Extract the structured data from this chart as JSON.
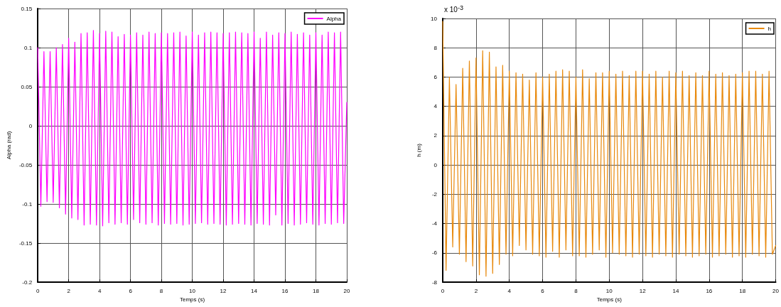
{
  "chart_data": [
    {
      "type": "line",
      "xlabel": "Temps (s)",
      "ylabel": "Alpha (rad)",
      "grid": true,
      "legend": "top right",
      "marker": "none",
      "line_style": "solid",
      "xlim": [
        0,
        20
      ],
      "xticks": [
        0,
        2,
        4,
        6,
        8,
        10,
        12,
        14,
        16,
        18,
        20
      ],
      "ylim": [
        -0.2,
        0.15
      ],
      "yticks": [
        -0.2,
        -0.15,
        -0.1,
        -0.05,
        0,
        0.05,
        0.1,
        0.15
      ],
      "x": [
        0,
        0.2,
        0.4,
        0.6,
        0.8,
        1,
        1.2,
        1.4,
        1.6,
        1.8,
        2,
        2.2,
        2.4,
        2.6,
        2.8,
        3,
        3.2,
        3.4,
        3.6,
        3.8,
        4,
        4.2,
        4.4,
        4.6,
        4.8,
        5,
        5.2,
        5.4,
        5.6,
        5.8,
        6,
        6.2,
        6.4,
        6.6,
        6.8,
        7,
        7.2,
        7.4,
        7.6,
        7.8,
        8,
        8.2,
        8.4,
        8.6,
        8.8,
        9,
        9.2,
        9.4,
        9.6,
        9.8,
        10,
        10.2,
        10.4,
        10.6,
        10.8,
        11,
        11.2,
        11.4,
        11.6,
        11.8,
        12,
        12.2,
        12.4,
        12.6,
        12.8,
        13,
        13.2,
        13.4,
        13.6,
        13.8,
        14,
        14.2,
        14.4,
        14.6,
        14.8,
        15,
        15.2,
        15.4,
        15.6,
        15.8,
        16,
        16.2,
        16.4,
        16.6,
        16.8,
        17,
        17.2,
        17.4,
        17.6,
        17.8,
        18,
        18.2,
        18.4,
        18.6,
        18.8,
        19,
        19.2,
        19.4,
        19.6,
        19.8,
        20
      ],
      "series": [
        {
          "name": "Alpha",
          "color": "#ff00ff",
          "values": [
            0.1,
            -0.103,
            0.095,
            -0.097,
            0.095,
            -0.098,
            0.1,
            -0.105,
            0.104,
            -0.113,
            0.112,
            -0.118,
            0.107,
            -0.12,
            0.118,
            -0.127,
            0.119,
            -0.126,
            0.122,
            -0.127,
            0.118,
            -0.128,
            0.121,
            -0.124,
            0.12,
            -0.126,
            0.114,
            -0.124,
            0.117,
            -0.126,
            0.116,
            -0.12,
            0.119,
            -0.124,
            0.116,
            -0.126,
            0.12,
            -0.124,
            0.118,
            -0.127,
            0.119,
            -0.125,
            0.118,
            -0.126,
            0.119,
            -0.125,
            0.12,
            -0.127,
            0.115,
            -0.126,
            0.12,
            -0.125,
            0.116,
            -0.124,
            0.119,
            -0.126,
            0.12,
            -0.125,
            0.119,
            -0.126,
            0.118,
            -0.127,
            0.119,
            -0.126,
            0.12,
            -0.125,
            0.119,
            -0.126,
            0.118,
            -0.127,
            0.12,
            -0.125,
            0.112,
            -0.126,
            0.12,
            -0.127,
            0.116,
            -0.114,
            0.119,
            -0.127,
            0.118,
            -0.125,
            0.12,
            -0.127,
            0.117,
            -0.126,
            0.119,
            -0.124,
            0.116,
            -0.126,
            0.119,
            -0.127,
            0.116,
            -0.125,
            0.12,
            -0.126,
            0.119,
            -0.124,
            0.12,
            -0.125,
            0.03
          ]
        }
      ]
    },
    {
      "type": "line",
      "xlabel": "Temps (s)",
      "ylabel": "h (m)",
      "annotations": [
        "x 10$^{-3}$"
      ],
      "grid": true,
      "legend": "top right",
      "marker": "none",
      "line_style": "solid",
      "xlim": [
        0,
        20
      ],
      "xticks": [
        0,
        2,
        4,
        6,
        8,
        10,
        12,
        14,
        16,
        18,
        20
      ],
      "ylim": [
        -8,
        10
      ],
      "yticks": [
        -8,
        -6,
        -4,
        -2,
        0,
        2,
        4,
        6,
        8,
        10
      ],
      "x": [
        0,
        0.2,
        0.4,
        0.6,
        0.8,
        1,
        1.2,
        1.4,
        1.6,
        1.8,
        2,
        2.2,
        2.4,
        2.6,
        2.8,
        3,
        3.2,
        3.4,
        3.6,
        3.8,
        4,
        4.2,
        4.4,
        4.6,
        4.8,
        5,
        5.2,
        5.4,
        5.6,
        5.8,
        6,
        6.2,
        6.4,
        6.6,
        6.8,
        7,
        7.2,
        7.4,
        7.6,
        7.8,
        8,
        8.2,
        8.4,
        8.6,
        8.8,
        9,
        9.2,
        9.4,
        9.6,
        9.8,
        10,
        10.2,
        10.4,
        10.6,
        10.8,
        11,
        11.2,
        11.4,
        11.6,
        11.8,
        12,
        12.2,
        12.4,
        12.6,
        12.8,
        13,
        13.2,
        13.4,
        13.6,
        13.8,
        14,
        14.2,
        14.4,
        14.6,
        14.8,
        15,
        15.2,
        15.4,
        15.6,
        15.8,
        16,
        16.2,
        16.4,
        16.6,
        16.8,
        17,
        17.2,
        17.4,
        17.6,
        17.8,
        18,
        18.2,
        18.4,
        18.6,
        18.8,
        19,
        19.2,
        19.4,
        19.6,
        19.8,
        20
      ],
      "series": [
        {
          "name": "h",
          "color": "#e8890c",
          "values": [
            9.8,
            -7.2,
            6.0,
            -5.6,
            5.5,
            -6.1,
            6.6,
            -6.6,
            7.1,
            -6.9,
            7.3,
            -7.5,
            7.8,
            -7.6,
            7.7,
            -7.4,
            6.7,
            -6.8,
            6.8,
            -6.1,
            6.4,
            -6.2,
            6.3,
            -5.5,
            6.2,
            -5.8,
            5.8,
            -6.1,
            6.3,
            -6.2,
            6.0,
            -6.3,
            6.2,
            -5.9,
            6.4,
            -6.3,
            6.5,
            -5.8,
            6.4,
            -6.2,
            6.0,
            -6.2,
            6.5,
            -6.3,
            5.9,
            -6.1,
            6.3,
            -5.8,
            6.3,
            -6.3,
            6.4,
            -6.0,
            6.2,
            -6.1,
            6.4,
            -6.2,
            6.1,
            -6.3,
            6.4,
            -6.1,
            6.4,
            -6.2,
            6.2,
            -6.3,
            6.4,
            -6.1,
            6.0,
            -6.2,
            6.4,
            -6.3,
            6.3,
            -6.1,
            6.4,
            -6.2,
            6.1,
            -6.3,
            6.3,
            -6.2,
            6.1,
            -6.1,
            6.4,
            -6.3,
            6.2,
            -6.2,
            6.3,
            -6.1,
            6.1,
            -6.3,
            6.2,
            -6.2,
            6.3,
            -6.3,
            6.4,
            -6.1,
            6.4,
            -6.2,
            6.2,
            -6.3,
            6.4,
            -6.1,
            -5.5
          ]
        }
      ]
    }
  ]
}
